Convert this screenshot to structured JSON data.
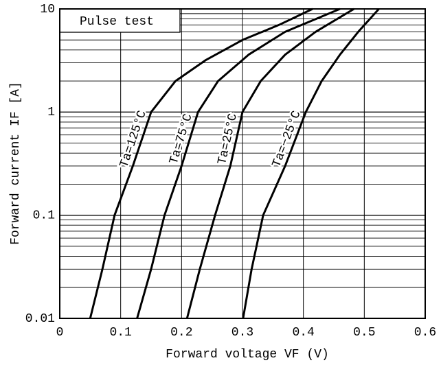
{
  "chart_data": {
    "type": "line",
    "annotation": "Pulse test",
    "xlabel": "Forward voltage VF (V)",
    "ylabel": "Forward current IF [A]",
    "xlim": [
      0,
      0.6
    ],
    "xticks": [
      0,
      0.1,
      0.2,
      0.3,
      0.4,
      0.5,
      0.6
    ],
    "ylim": [
      0.01,
      10
    ],
    "yticks": [
      0.01,
      0.1,
      1,
      10
    ],
    "log_y": true,
    "grid": true,
    "minor_grid": true,
    "color": "#000000",
    "series": [
      {
        "name": "Ta=125°C",
        "x": [
          0.05,
          0.07,
          0.09,
          0.12,
          0.15,
          0.19,
          0.24,
          0.3,
          0.36,
          0.415
        ],
        "values": [
          0.01,
          0.03,
          0.1,
          0.3,
          1,
          2,
          3.2,
          5,
          7,
          10
        ]
      },
      {
        "name": "Ta=75°C",
        "x": [
          0.127,
          0.15,
          0.172,
          0.2,
          0.227,
          0.26,
          0.31,
          0.37,
          0.46
        ],
        "values": [
          0.01,
          0.03,
          0.1,
          0.3,
          1,
          2,
          3.6,
          6,
          10
        ]
      },
      {
        "name": "Ta=25°C",
        "x": [
          0.209,
          0.23,
          0.255,
          0.28,
          0.3,
          0.33,
          0.37,
          0.42,
          0.483
        ],
        "values": [
          0.01,
          0.03,
          0.1,
          0.3,
          1,
          2,
          3.6,
          6,
          10
        ]
      },
      {
        "name": "Ta=−25°C",
        "x": [
          0.301,
          0.315,
          0.334,
          0.37,
          0.404,
          0.43,
          0.46,
          0.49,
          0.524
        ],
        "values": [
          0.01,
          0.03,
          0.1,
          0.3,
          1,
          2,
          3.6,
          6,
          10
        ]
      }
    ]
  }
}
